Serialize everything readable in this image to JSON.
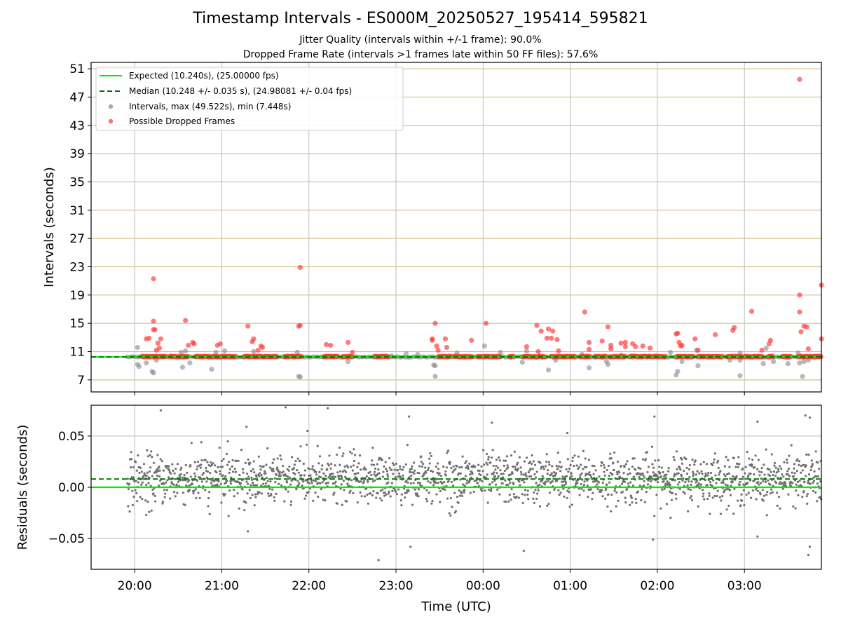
{
  "header": {
    "title": "Timestamp Intervals - ES000M_20250527_195414_595821",
    "subtitle1": "Jitter Quality (intervals within +/-1 frame): 90.0%",
    "subtitle2": "Dropped Frame Rate (intervals >1 frames late within 50 FF files): 57.6%"
  },
  "colors": {
    "expected": "#00ee00",
    "median": "#007700",
    "intervals": "#888888",
    "dropped": "#ff3333",
    "hgrid_top": "#d4c088",
    "grid": "#c8c8c8"
  },
  "chart_data": [
    {
      "type": "scatter",
      "ylabel": "Intervals (seconds)",
      "xlabel": "",
      "ylim": [
        5.3,
        51.9
      ],
      "xlim": [
        "19:30",
        "03:53"
      ],
      "yticks": [
        "7",
        "11",
        "15",
        "19",
        "23",
        "27",
        "31",
        "35",
        "39",
        "43",
        "47",
        "51"
      ],
      "grid": "horizontal at y ticks, vertical at x ticks",
      "legend_position": "upper-left",
      "legend": [
        "Expected (10.240s), (25.00000 fps)",
        "Median (10.248 +/- 0.035 s), (24.98081 +/- 0.04 fps)",
        "Intervals, max (49.522s), min (7.448s)",
        "Possible Dropped Frames"
      ],
      "expected_interval": 10.24,
      "median_interval": 10.248,
      "series": [
        {
          "name": "Possible Dropped Frames",
          "bands": [
            {
              "x": [
                "20:05",
                "20:22"
              ],
              "y": 10.3
            },
            {
              "x": [
                "20:24",
                "20:37"
              ],
              "y": 10.3
            },
            {
              "x": [
                "20:42",
                "20:58"
              ],
              "y": 10.3
            },
            {
              "x": [
                "20:58",
                "21:10"
              ],
              "y": 10.3
            },
            {
              "x": [
                "21:15",
                "21:38"
              ],
              "y": 10.3
            },
            {
              "x": [
                "21:43",
                "21:55"
              ],
              "y": 10.3
            },
            {
              "x": [
                "22:10",
                "22:20"
              ],
              "y": 10.3
            },
            {
              "x": [
                "22:23",
                "22:30"
              ],
              "y": 10.3
            },
            {
              "x": [
                "22:45",
                "22:55"
              ],
              "y": 10.3
            },
            {
              "x": [
                "23:29",
                "23:38"
              ],
              "y": 10.3
            },
            {
              "x": [
                "23:40",
                "23:53"
              ],
              "y": 10.3
            },
            {
              "x": [
                "23:56",
                "00:12"
              ],
              "y": 10.3
            },
            {
              "x": [
                "00:18",
                "00:21"
              ],
              "y": 10.3
            },
            {
              "x": [
                "00:27",
                "00:43"
              ],
              "y": 10.3
            },
            {
              "x": [
                "00:47",
                "01:04"
              ],
              "y": 10.3
            },
            {
              "x": [
                "01:07",
                "01:14"
              ],
              "y": 10.3
            },
            {
              "x": [
                "01:17",
                "01:25"
              ],
              "y": 10.3
            },
            {
              "x": [
                "01:27",
                "01:38"
              ],
              "y": 10.3
            },
            {
              "x": [
                "01:41",
                "02:06"
              ],
              "y": 10.3
            },
            {
              "x": [
                "02:13",
                "02:25"
              ],
              "y": 10.3
            },
            {
              "x": [
                "02:28",
                "02:45"
              ],
              "y": 10.3
            },
            {
              "x": [
                "02:48",
                "02:59"
              ],
              "y": 10.3
            },
            {
              "x": [
                "03:00",
                "03:13"
              ],
              "y": 10.3
            },
            {
              "x": [
                "03:16",
                "03:20"
              ],
              "y": 10.3
            },
            {
              "x": [
                "03:26",
                "03:32"
              ],
              "y": 10.3
            },
            {
              "x": [
                "03:37",
                "03:53"
              ],
              "y": 10.3
            }
          ],
          "points": [
            {
              "x": "20:08",
              "y": 12.8
            },
            {
              "x": "20:10",
              "y": 12.9
            },
            {
              "x": "20:13",
              "y": 21.3
            },
            {
              "x": "20:13",
              "y": 15.3
            },
            {
              "x": "20:13",
              "y": 14.1
            },
            {
              "x": "20:14",
              "y": 14.1
            },
            {
              "x": "20:15",
              "y": 11.2
            },
            {
              "x": "20:16",
              "y": 12.2
            },
            {
              "x": "20:17",
              "y": 11.5
            },
            {
              "x": "20:18",
              "y": 12.8
            },
            {
              "x": "20:35",
              "y": 15.4
            },
            {
              "x": "20:37",
              "y": 11.9
            },
            {
              "x": "20:40",
              "y": 12.3
            },
            {
              "x": "20:41",
              "y": 12.1
            },
            {
              "x": "20:57",
              "y": 11.9
            },
            {
              "x": "20:59",
              "y": 12.1
            },
            {
              "x": "21:18",
              "y": 14.6
            },
            {
              "x": "21:21",
              "y": 12.4
            },
            {
              "x": "21:22",
              "y": 12.8
            },
            {
              "x": "21:25",
              "y": 11.2
            },
            {
              "x": "21:27",
              "y": 11.8
            },
            {
              "x": "21:28",
              "y": 11.6
            },
            {
              "x": "21:53",
              "y": 14.6
            },
            {
              "x": "21:54",
              "y": 14.7
            },
            {
              "x": "21:54",
              "y": 22.9
            },
            {
              "x": "22:12",
              "y": 12.0
            },
            {
              "x": "22:15",
              "y": 11.9
            },
            {
              "x": "22:27",
              "y": 12.3
            },
            {
              "x": "22:30",
              "y": 10.9
            },
            {
              "x": "23:25",
              "y": 12.6
            },
            {
              "x": "23:25",
              "y": 12.8
            },
            {
              "x": "23:27",
              "y": 15.0
            },
            {
              "x": "23:28",
              "y": 11.8
            },
            {
              "x": "23:29",
              "y": 11.2
            },
            {
              "x": "23:34",
              "y": 12.8
            },
            {
              "x": "23:35",
              "y": 11.6
            },
            {
              "x": "23:52",
              "y": 12.6
            },
            {
              "x": "00:02",
              "y": 15.0
            },
            {
              "x": "00:30",
              "y": 11.7
            },
            {
              "x": "00:37",
              "y": 14.7
            },
            {
              "x": "00:38",
              "y": 11.0
            },
            {
              "x": "00:40",
              "y": 13.9
            },
            {
              "x": "00:44",
              "y": 12.9
            },
            {
              "x": "00:45",
              "y": 14.2
            },
            {
              "x": "00:47",
              "y": 12.9
            },
            {
              "x": "00:48",
              "y": 13.9
            },
            {
              "x": "00:51",
              "y": 12.7
            },
            {
              "x": "00:52",
              "y": 11.1
            },
            {
              "x": "01:10",
              "y": 16.6
            },
            {
              "x": "01:13",
              "y": 12.3
            },
            {
              "x": "01:13",
              "y": 11.3
            },
            {
              "x": "01:22",
              "y": 12.5
            },
            {
              "x": "01:26",
              "y": 14.5
            },
            {
              "x": "01:28",
              "y": 11.9
            },
            {
              "x": "01:28",
              "y": 11.4
            },
            {
              "x": "01:35",
              "y": 12.2
            },
            {
              "x": "01:38",
              "y": 12.3
            },
            {
              "x": "01:38",
              "y": 11.7
            },
            {
              "x": "01:43",
              "y": 12.1
            },
            {
              "x": "01:45",
              "y": 11.7
            },
            {
              "x": "01:50",
              "y": 11.8
            },
            {
              "x": "01:55",
              "y": 11.5
            },
            {
              "x": "02:13",
              "y": 13.5
            },
            {
              "x": "02:14",
              "y": 13.6
            },
            {
              "x": "02:15",
              "y": 12.3
            },
            {
              "x": "02:16",
              "y": 11.8
            },
            {
              "x": "02:17",
              "y": 11.9
            },
            {
              "x": "02:26",
              "y": 12.8
            },
            {
              "x": "02:28",
              "y": 11.2
            },
            {
              "x": "02:40",
              "y": 13.4
            },
            {
              "x": "02:52",
              "y": 14.0
            },
            {
              "x": "02:53",
              "y": 14.4
            },
            {
              "x": "03:05",
              "y": 16.7
            },
            {
              "x": "03:12",
              "y": 11.2
            },
            {
              "x": "03:17",
              "y": 12.1
            },
            {
              "x": "03:18",
              "y": 12.6
            },
            {
              "x": "03:38",
              "y": 49.5
            },
            {
              "x": "03:38",
              "y": 19.0
            },
            {
              "x": "03:38",
              "y": 16.6
            },
            {
              "x": "03:39",
              "y": 13.8
            },
            {
              "x": "03:41",
              "y": 14.6
            },
            {
              "x": "03:43",
              "y": 14.5
            },
            {
              "x": "03:44",
              "y": 11.4
            },
            {
              "x": "03:53",
              "y": 20.4
            },
            {
              "x": "03:53",
              "y": 12.8
            }
          ]
        },
        {
          "name": "Intervals",
          "points": [
            {
              "x": "20:02",
              "y": 11.6
            },
            {
              "x": "20:02",
              "y": 9.2
            },
            {
              "x": "20:03",
              "y": 8.9
            },
            {
              "x": "20:08",
              "y": 9.4
            },
            {
              "x": "20:12",
              "y": 8.2
            },
            {
              "x": "20:13",
              "y": 8.0
            },
            {
              "x": "20:15",
              "y": 9.8
            },
            {
              "x": "20:32",
              "y": 10.9
            },
            {
              "x": "20:33",
              "y": 8.8
            },
            {
              "x": "20:35",
              "y": 11.1
            },
            {
              "x": "20:38",
              "y": 9.4
            },
            {
              "x": "20:53",
              "y": 8.5
            },
            {
              "x": "20:56",
              "y": 10.9
            },
            {
              "x": "21:02",
              "y": 11.1
            },
            {
              "x": "21:22",
              "y": 11.0
            },
            {
              "x": "21:53",
              "y": 7.5
            },
            {
              "x": "21:54",
              "y": 7.4
            },
            {
              "x": "21:52",
              "y": 10.9
            },
            {
              "x": "22:27",
              "y": 9.6
            },
            {
              "x": "22:57",
              "y": 10.4
            },
            {
              "x": "23:07",
              "y": 10.7
            },
            {
              "x": "23:15",
              "y": 10.6
            },
            {
              "x": "23:26",
              "y": 9.1
            },
            {
              "x": "23:27",
              "y": 7.5
            },
            {
              "x": "23:27",
              "y": 9.0
            },
            {
              "x": "23:42",
              "y": 10.8
            },
            {
              "x": "00:01",
              "y": 11.8
            },
            {
              "x": "00:12",
              "y": 10.9
            },
            {
              "x": "00:27",
              "y": 9.5
            },
            {
              "x": "00:30",
              "y": 11.1
            },
            {
              "x": "00:45",
              "y": 8.4
            },
            {
              "x": "00:50",
              "y": 9.8
            },
            {
              "x": "01:08",
              "y": 10.6
            },
            {
              "x": "01:13",
              "y": 8.7
            },
            {
              "x": "01:25",
              "y": 9.6
            },
            {
              "x": "01:26",
              "y": 9.2
            },
            {
              "x": "01:35",
              "y": 10.5
            },
            {
              "x": "02:09",
              "y": 10.9
            },
            {
              "x": "02:13",
              "y": 7.7
            },
            {
              "x": "02:14",
              "y": 8.2
            },
            {
              "x": "02:17",
              "y": 9.6
            },
            {
              "x": "02:27",
              "y": 11.2
            },
            {
              "x": "02:28",
              "y": 9.0
            },
            {
              "x": "02:50",
              "y": 9.8
            },
            {
              "x": "02:57",
              "y": 10.8
            },
            {
              "x": "02:57",
              "y": 7.6
            },
            {
              "x": "02:57",
              "y": 9.8
            },
            {
              "x": "03:13",
              "y": 9.3
            },
            {
              "x": "03:15",
              "y": 11.5
            },
            {
              "x": "03:20",
              "y": 9.6
            },
            {
              "x": "03:30",
              "y": 9.3
            },
            {
              "x": "03:37",
              "y": 10.8
            },
            {
              "x": "03:38",
              "y": 9.4
            },
            {
              "x": "03:40",
              "y": 7.5
            },
            {
              "x": "03:41",
              "y": 9.6
            },
            {
              "x": "03:44",
              "y": 9.8
            }
          ],
          "baseline": {
            "x": [
              "19:55",
              "03:53"
            ],
            "y": 10.25
          }
        }
      ]
    },
    {
      "type": "scatter",
      "xlabel": "Time (UTC)",
      "ylabel": "Residuals (seconds)",
      "ylim": [
        -0.08,
        0.08
      ],
      "yticks": [
        "0.05",
        "0.00",
        "−0.05"
      ],
      "xticks": [
        "20:00",
        "21:00",
        "22:00",
        "23:00",
        "00:00",
        "01:00",
        "02:00",
        "03:00"
      ],
      "grid": "both axes",
      "expected_residual": 0.0,
      "median_residual": 0.008,
      "series": [
        {
          "name": "Residuals",
          "cloud": {
            "x": [
              "19:55",
              "03:53"
            ],
            "center": 0.008,
            "spread_sd": 0.012
          },
          "outliers": [
            {
              "x": "20:08",
              "y": -0.027
            },
            {
              "x": "20:10",
              "y": -0.024
            },
            {
              "x": "20:18",
              "y": 0.075
            },
            {
              "x": "21:17",
              "y": 0.059
            },
            {
              "x": "21:18",
              "y": -0.043
            },
            {
              "x": "21:44",
              "y": 0.078
            },
            {
              "x": "21:59",
              "y": 0.055
            },
            {
              "x": "22:13",
              "y": 0.077
            },
            {
              "x": "22:48",
              "y": -0.071
            },
            {
              "x": "23:09",
              "y": 0.069
            },
            {
              "x": "23:10",
              "y": -0.058
            },
            {
              "x": "00:06",
              "y": 0.063
            },
            {
              "x": "00:28",
              "y": -0.062
            },
            {
              "x": "00:58",
              "y": 0.053
            },
            {
              "x": "01:57",
              "y": -0.051
            },
            {
              "x": "01:58",
              "y": 0.069
            },
            {
              "x": "03:09",
              "y": -0.048
            },
            {
              "x": "03:09",
              "y": 0.064
            },
            {
              "x": "03:42",
              "y": 0.07
            },
            {
              "x": "03:45",
              "y": 0.068
            },
            {
              "x": "03:45",
              "y": -0.058
            },
            {
              "x": "03:44",
              "y": -0.066
            }
          ]
        }
      ]
    }
  ]
}
